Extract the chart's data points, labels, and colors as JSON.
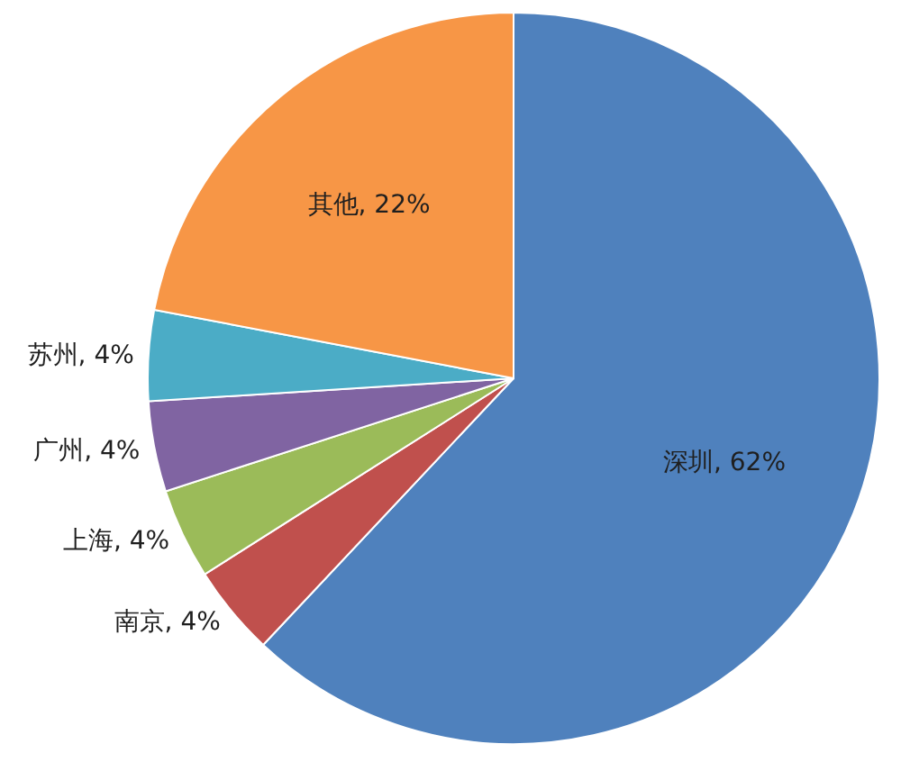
{
  "chart_data": {
    "type": "pie",
    "categories": [
      "深圳",
      "南京",
      "上海",
      "广州",
      "苏州",
      "其他"
    ],
    "values": [
      62,
      4,
      4,
      4,
      4,
      22
    ],
    "value_labels": [
      ", 62%",
      ", 4%",
      ", 4%",
      ", 4%",
      ", 4%",
      ", 22%"
    ],
    "colors": [
      "#4f81bd",
      "#c0504d",
      "#9bbb59",
      "#8064a2",
      "#4bacc6",
      "#f79646"
    ]
  }
}
